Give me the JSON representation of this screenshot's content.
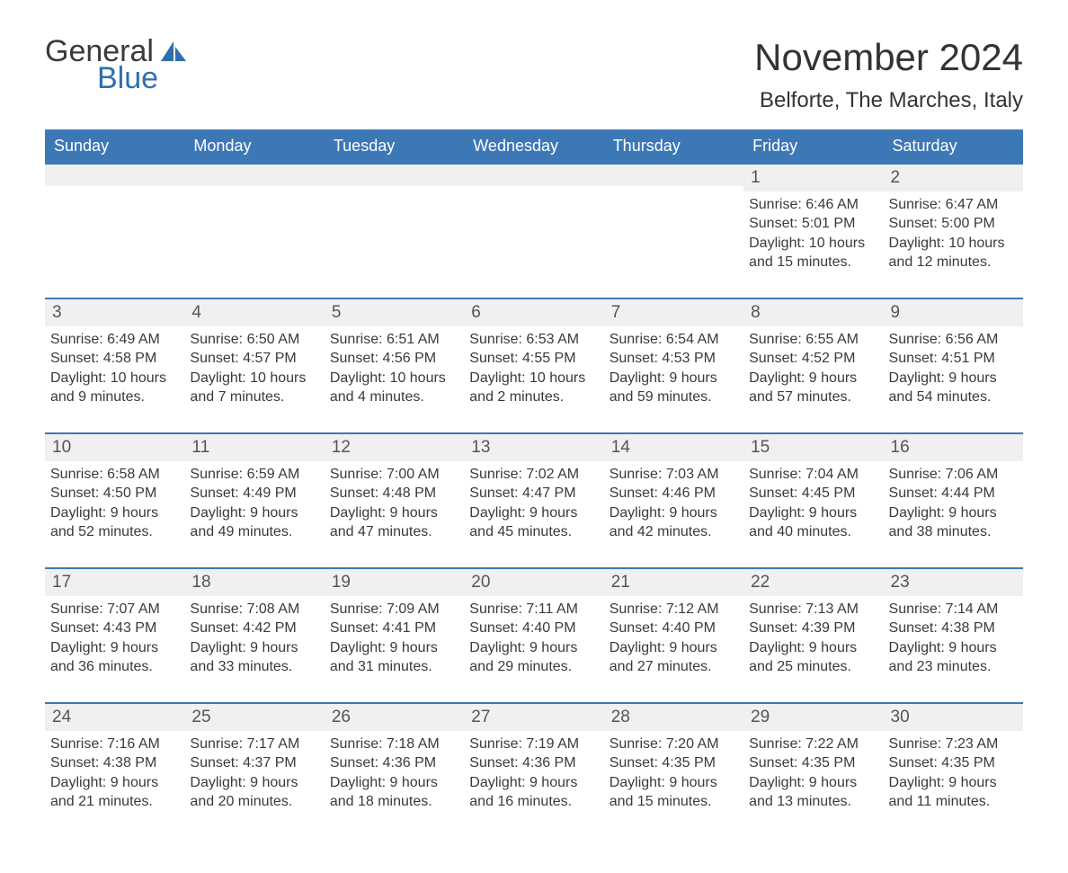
{
  "brand": {
    "line1": "General",
    "line2": "Blue",
    "logo_color": "#2f6fb0"
  },
  "title": "November 2024",
  "location": "Belforte, The Marches, Italy",
  "colors": {
    "header_bg": "#3d78b6",
    "header_text": "#ffffff",
    "week_border": "#3d78b6",
    "daynum_bg": "#f0f0f0",
    "text": "#3a3a3a",
    "page_bg": "#ffffff"
  },
  "layout": {
    "columns": 7,
    "rows": 5,
    "first_day_column": 5
  },
  "days_of_week": [
    "Sunday",
    "Monday",
    "Tuesday",
    "Wednesday",
    "Thursday",
    "Friday",
    "Saturday"
  ],
  "weeks": [
    [
      null,
      null,
      null,
      null,
      null,
      {
        "n": "1",
        "sunrise": "6:46 AM",
        "sunset": "5:01 PM",
        "daylight_l1": "Daylight: 10 hours",
        "daylight_l2": "and 15 minutes."
      },
      {
        "n": "2",
        "sunrise": "6:47 AM",
        "sunset": "5:00 PM",
        "daylight_l1": "Daylight: 10 hours",
        "daylight_l2": "and 12 minutes."
      }
    ],
    [
      {
        "n": "3",
        "sunrise": "6:49 AM",
        "sunset": "4:58 PM",
        "daylight_l1": "Daylight: 10 hours",
        "daylight_l2": "and 9 minutes."
      },
      {
        "n": "4",
        "sunrise": "6:50 AM",
        "sunset": "4:57 PM",
        "daylight_l1": "Daylight: 10 hours",
        "daylight_l2": "and 7 minutes."
      },
      {
        "n": "5",
        "sunrise": "6:51 AM",
        "sunset": "4:56 PM",
        "daylight_l1": "Daylight: 10 hours",
        "daylight_l2": "and 4 minutes."
      },
      {
        "n": "6",
        "sunrise": "6:53 AM",
        "sunset": "4:55 PM",
        "daylight_l1": "Daylight: 10 hours",
        "daylight_l2": "and 2 minutes."
      },
      {
        "n": "7",
        "sunrise": "6:54 AM",
        "sunset": "4:53 PM",
        "daylight_l1": "Daylight: 9 hours",
        "daylight_l2": "and 59 minutes."
      },
      {
        "n": "8",
        "sunrise": "6:55 AM",
        "sunset": "4:52 PM",
        "daylight_l1": "Daylight: 9 hours",
        "daylight_l2": "and 57 minutes."
      },
      {
        "n": "9",
        "sunrise": "6:56 AM",
        "sunset": "4:51 PM",
        "daylight_l1": "Daylight: 9 hours",
        "daylight_l2": "and 54 minutes."
      }
    ],
    [
      {
        "n": "10",
        "sunrise": "6:58 AM",
        "sunset": "4:50 PM",
        "daylight_l1": "Daylight: 9 hours",
        "daylight_l2": "and 52 minutes."
      },
      {
        "n": "11",
        "sunrise": "6:59 AM",
        "sunset": "4:49 PM",
        "daylight_l1": "Daylight: 9 hours",
        "daylight_l2": "and 49 minutes."
      },
      {
        "n": "12",
        "sunrise": "7:00 AM",
        "sunset": "4:48 PM",
        "daylight_l1": "Daylight: 9 hours",
        "daylight_l2": "and 47 minutes."
      },
      {
        "n": "13",
        "sunrise": "7:02 AM",
        "sunset": "4:47 PM",
        "daylight_l1": "Daylight: 9 hours",
        "daylight_l2": "and 45 minutes."
      },
      {
        "n": "14",
        "sunrise": "7:03 AM",
        "sunset": "4:46 PM",
        "daylight_l1": "Daylight: 9 hours",
        "daylight_l2": "and 42 minutes."
      },
      {
        "n": "15",
        "sunrise": "7:04 AM",
        "sunset": "4:45 PM",
        "daylight_l1": "Daylight: 9 hours",
        "daylight_l2": "and 40 minutes."
      },
      {
        "n": "16",
        "sunrise": "7:06 AM",
        "sunset": "4:44 PM",
        "daylight_l1": "Daylight: 9 hours",
        "daylight_l2": "and 38 minutes."
      }
    ],
    [
      {
        "n": "17",
        "sunrise": "7:07 AM",
        "sunset": "4:43 PM",
        "daylight_l1": "Daylight: 9 hours",
        "daylight_l2": "and 36 minutes."
      },
      {
        "n": "18",
        "sunrise": "7:08 AM",
        "sunset": "4:42 PM",
        "daylight_l1": "Daylight: 9 hours",
        "daylight_l2": "and 33 minutes."
      },
      {
        "n": "19",
        "sunrise": "7:09 AM",
        "sunset": "4:41 PM",
        "daylight_l1": "Daylight: 9 hours",
        "daylight_l2": "and 31 minutes."
      },
      {
        "n": "20",
        "sunrise": "7:11 AM",
        "sunset": "4:40 PM",
        "daylight_l1": "Daylight: 9 hours",
        "daylight_l2": "and 29 minutes."
      },
      {
        "n": "21",
        "sunrise": "7:12 AM",
        "sunset": "4:40 PM",
        "daylight_l1": "Daylight: 9 hours",
        "daylight_l2": "and 27 minutes."
      },
      {
        "n": "22",
        "sunrise": "7:13 AM",
        "sunset": "4:39 PM",
        "daylight_l1": "Daylight: 9 hours",
        "daylight_l2": "and 25 minutes."
      },
      {
        "n": "23",
        "sunrise": "7:14 AM",
        "sunset": "4:38 PM",
        "daylight_l1": "Daylight: 9 hours",
        "daylight_l2": "and 23 minutes."
      }
    ],
    [
      {
        "n": "24",
        "sunrise": "7:16 AM",
        "sunset": "4:38 PM",
        "daylight_l1": "Daylight: 9 hours",
        "daylight_l2": "and 21 minutes."
      },
      {
        "n": "25",
        "sunrise": "7:17 AM",
        "sunset": "4:37 PM",
        "daylight_l1": "Daylight: 9 hours",
        "daylight_l2": "and 20 minutes."
      },
      {
        "n": "26",
        "sunrise": "7:18 AM",
        "sunset": "4:36 PM",
        "daylight_l1": "Daylight: 9 hours",
        "daylight_l2": "and 18 minutes."
      },
      {
        "n": "27",
        "sunrise": "7:19 AM",
        "sunset": "4:36 PM",
        "daylight_l1": "Daylight: 9 hours",
        "daylight_l2": "and 16 minutes."
      },
      {
        "n": "28",
        "sunrise": "7:20 AM",
        "sunset": "4:35 PM",
        "daylight_l1": "Daylight: 9 hours",
        "daylight_l2": "and 15 minutes."
      },
      {
        "n": "29",
        "sunrise": "7:22 AM",
        "sunset": "4:35 PM",
        "daylight_l1": "Daylight: 9 hours",
        "daylight_l2": "and 13 minutes."
      },
      {
        "n": "30",
        "sunrise": "7:23 AM",
        "sunset": "4:35 PM",
        "daylight_l1": "Daylight: 9 hours",
        "daylight_l2": "and 11 minutes."
      }
    ]
  ],
  "labels": {
    "sunrise_prefix": "Sunrise: ",
    "sunset_prefix": "Sunset: "
  }
}
